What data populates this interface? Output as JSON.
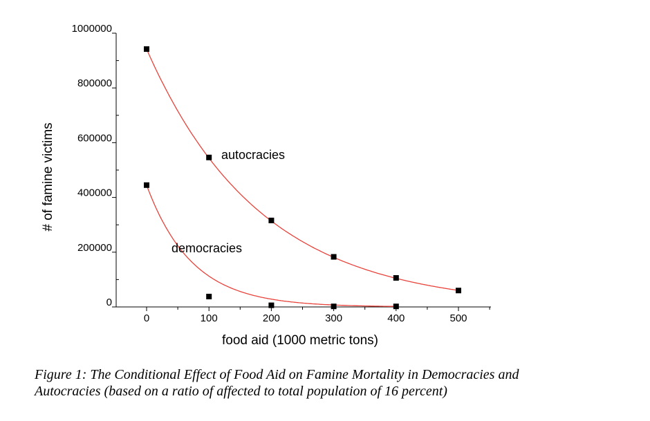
{
  "chart_data": {
    "type": "scatter",
    "xlabel": "food aid (1000 metric tons)",
    "ylabel": "# of famine victims",
    "xlim": [
      -40,
      540
    ],
    "ylim": [
      0,
      1000000
    ],
    "x_ticks": [
      0,
      100,
      200,
      300,
      400,
      500
    ],
    "x_tick_labels": [
      "0",
      "100",
      "200",
      "300",
      "400",
      "500"
    ],
    "y_ticks": [
      0,
      200000,
      400000,
      600000,
      800000,
      1000000
    ],
    "y_tick_labels": [
      "0",
      "200000",
      "400000",
      "600000",
      "800000",
      "1000000"
    ],
    "series": [
      {
        "name": "autocracies",
        "x": [
          0,
          100,
          200,
          300,
          400,
          500
        ],
        "y": [
          942000,
          546000,
          316000,
          183000,
          106000,
          60000
        ],
        "fit": "exponential",
        "marker_color": "#000000",
        "line_color": "#e8423a"
      },
      {
        "name": "democracies",
        "x": [
          0,
          100,
          200,
          300,
          400
        ],
        "y": [
          445000,
          38000,
          6000,
          2000,
          2000
        ],
        "fit": "exponential",
        "marker_color": "#000000",
        "line_color": "#e8423a"
      }
    ]
  },
  "caption": {
    "line1": "Figure 1: The Conditional Effect of Food Aid on Famine Mortality in Democracies and",
    "line2": "Autocracies (based on a ratio of affected to total population of 16 percent)"
  }
}
